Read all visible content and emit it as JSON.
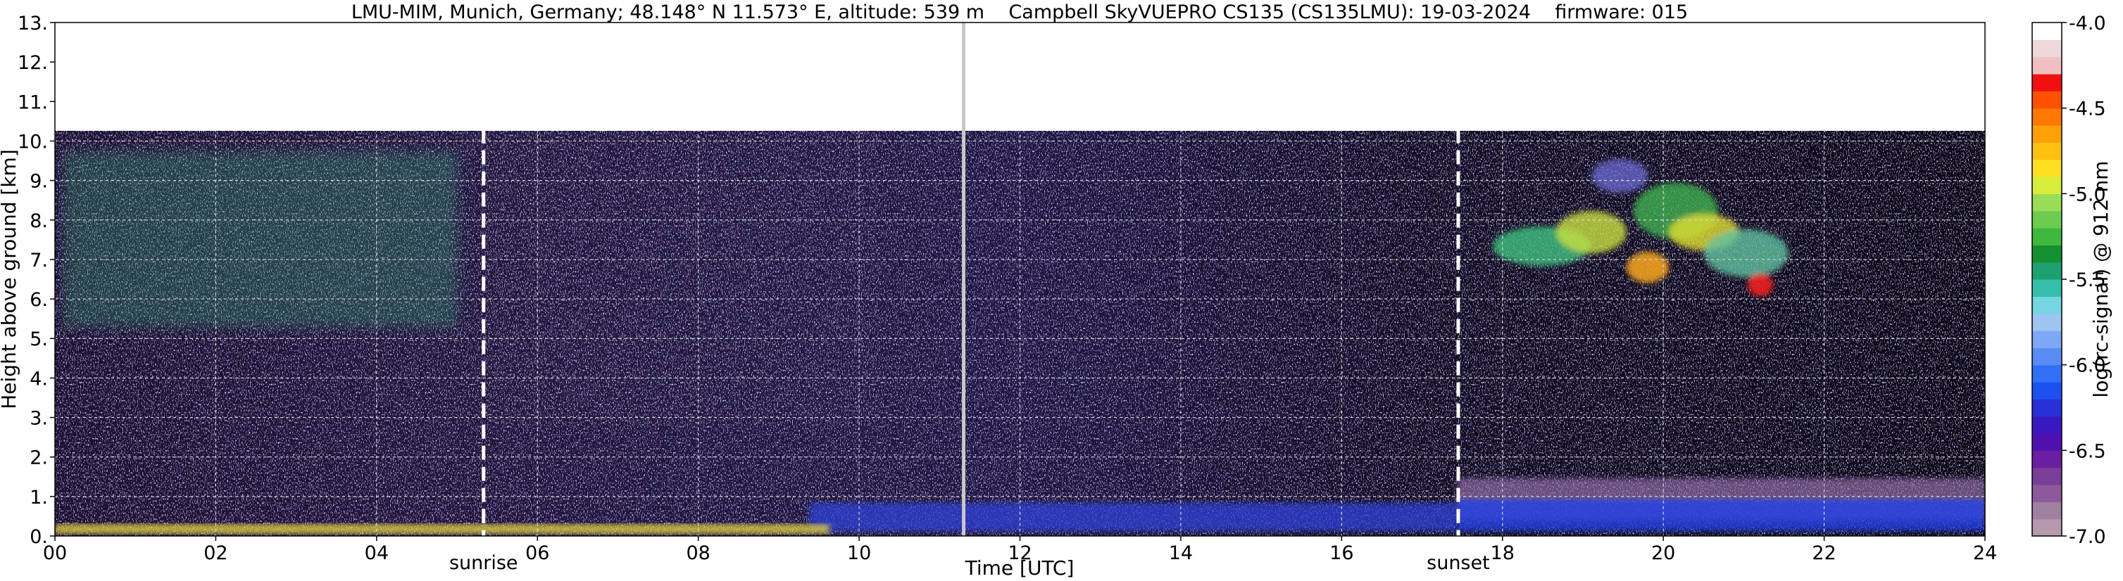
{
  "chart_data": {
    "type": "heatmap",
    "title": "LMU-MIM, Munich, Germany; 48.148° N 11.573° E, altitude: 539 m    Campbell SkyVUEPRO CS135 (CS135LMU): 19-03-2024    firmware: 015",
    "xlabel": "Time [UTC]",
    "ylabel": "Height above ground [km]",
    "xlim": [
      0,
      24
    ],
    "ylim": [
      0,
      13
    ],
    "x_ticks": [
      0,
      2,
      4,
      6,
      8,
      10,
      12,
      14,
      16,
      18,
      20,
      22,
      24
    ],
    "x_tick_labels": [
      "00",
      "02",
      "04",
      "06",
      "08",
      "10",
      "12",
      "14",
      "16",
      "18",
      "20",
      "22",
      "24"
    ],
    "y_ticks": [
      0,
      1,
      2,
      3,
      4,
      5,
      6,
      7,
      8,
      9,
      10,
      11,
      12,
      13
    ],
    "y_tick_labels": [
      "0.",
      "1.",
      "2.",
      "3.",
      "4.",
      "5.",
      "6.",
      "7.",
      "8.",
      "9.",
      "10.",
      "11.",
      "12.",
      "13."
    ],
    "grid": true,
    "data_top_km": 10.3,
    "annotations": [
      {
        "label": "sunrise",
        "x": 5.33
      },
      {
        "label": "sunset",
        "x": 17.45
      }
    ],
    "gap_marker_x": 11.3,
    "colorbar": {
      "label": "log(rc-signal) @ 912 nm",
      "range": [
        -7.0,
        -4.0
      ],
      "ticks": [
        -4.0,
        -4.5,
        -5.0,
        -5.5,
        -6.0,
        -6.5,
        -7.0
      ],
      "tick_labels": [
        "-4.0",
        "-4.5",
        "-5.0",
        "-5.5",
        "-6.0",
        "-6.5",
        "-7.0"
      ],
      "colors": [
        "#b49aac",
        "#a080a0",
        "#8c5a9c",
        "#7a3d9a",
        "#6a1fa0",
        "#5010b0",
        "#3a18c0",
        "#2a30d8",
        "#1d50f0",
        "#3070f5",
        "#5a8cf5",
        "#7ea8f5",
        "#9ec4f2",
        "#74d6e0",
        "#35bfa8",
        "#1fa070",
        "#149030",
        "#40b840",
        "#6ccc50",
        "#9adc55",
        "#d8ec3c",
        "#ffe020",
        "#ffc010",
        "#ffa008",
        "#ff7800",
        "#ff5000",
        "#f01010",
        "#f0c0c0",
        "#eed8dc",
        "#ffffff"
      ]
    },
    "features": [
      {
        "name": "residual-layer",
        "x": [
          17.5,
          24
        ],
        "y": [
          1.0,
          2.0
        ]
      },
      {
        "name": "boundary-layer",
        "x": [
          9.3,
          24
        ],
        "y": [
          0.0,
          1.0
        ]
      },
      {
        "name": "cirrus",
        "x": [
          17.8,
          21.8
        ],
        "y": [
          6.0,
          10.3
        ]
      },
      {
        "name": "upper-cloud-morning",
        "x": [
          0,
          4.8
        ],
        "y": [
          5.0,
          9.8
        ]
      }
    ]
  }
}
